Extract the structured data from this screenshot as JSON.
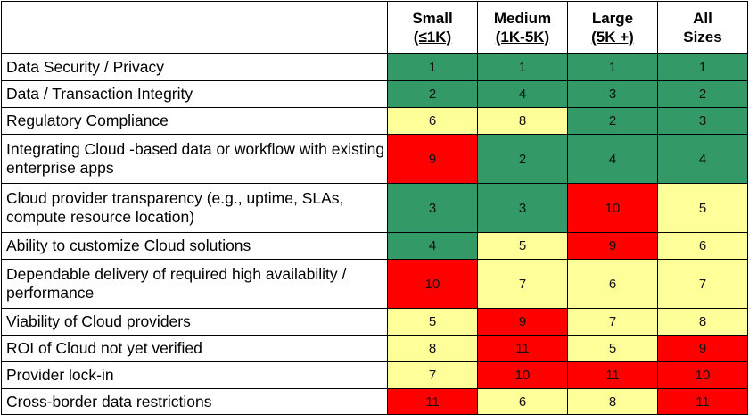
{
  "chart_data": {
    "type": "table",
    "columns": [
      {
        "line1": "Small",
        "line2": "(≤1K)"
      },
      {
        "line1": "Medium",
        "line2": "(1K-5K)"
      },
      {
        "line1": "Large",
        "line2": "(5K +)"
      },
      {
        "line1": "All",
        "line2": "Sizes"
      }
    ],
    "rows": [
      {
        "label": "Data Security / Privacy",
        "ranks": [
          "1",
          "1",
          "1",
          "1"
        ],
        "levels": [
          "green",
          "green",
          "green",
          "green"
        ]
      },
      {
        "label": "Data / Transaction Integrity",
        "ranks": [
          "2",
          "4",
          "3",
          "2"
        ],
        "levels": [
          "green",
          "green",
          "green",
          "green"
        ]
      },
      {
        "label": "Regulatory Compliance",
        "ranks": [
          "6",
          "8",
          "2",
          "3"
        ],
        "levels": [
          "yellow",
          "yellow",
          "green",
          "green"
        ]
      },
      {
        "label": "Integrating Cloud -based data or workflow with existing enterprise apps",
        "ranks": [
          "9",
          "2",
          "4",
          "4"
        ],
        "levels": [
          "red",
          "green",
          "green",
          "green"
        ]
      },
      {
        "label": "Cloud provider transparency (e.g., uptime, SLAs, compute resource location)",
        "ranks": [
          "3",
          "3",
          "10",
          "5"
        ],
        "levels": [
          "green",
          "green",
          "red",
          "yellow"
        ]
      },
      {
        "label": "Ability to customize Cloud solutions",
        "ranks": [
          "4",
          "5",
          "9",
          "6"
        ],
        "levels": [
          "green",
          "yellow",
          "red",
          "yellow"
        ]
      },
      {
        "label": "Dependable delivery of required high availability / performance",
        "ranks": [
          "10",
          "7",
          "6",
          "7"
        ],
        "levels": [
          "red",
          "yellow",
          "yellow",
          "yellow"
        ]
      },
      {
        "label": "Viability of Cloud providers",
        "ranks": [
          "5",
          "9",
          "7",
          "8"
        ],
        "levels": [
          "yellow",
          "red",
          "yellow",
          "yellow"
        ]
      },
      {
        "label": "ROI of Cloud not yet verified",
        "ranks": [
          "8",
          "11",
          "5",
          "9"
        ],
        "levels": [
          "yellow",
          "red",
          "yellow",
          "red"
        ]
      },
      {
        "label": "Provider lock-in",
        "ranks": [
          "7",
          "10",
          "11",
          "10"
        ],
        "levels": [
          "yellow",
          "red",
          "red",
          "red"
        ]
      },
      {
        "label": "Cross-border data restrictions",
        "ranks": [
          "11",
          "6",
          "8",
          "11"
        ],
        "levels": [
          "red",
          "yellow",
          "yellow",
          "red"
        ]
      }
    ]
  },
  "colors": {
    "green": "#339966",
    "yellow": "#ffff99",
    "red": "#ff0000",
    "border": "#000000"
  }
}
